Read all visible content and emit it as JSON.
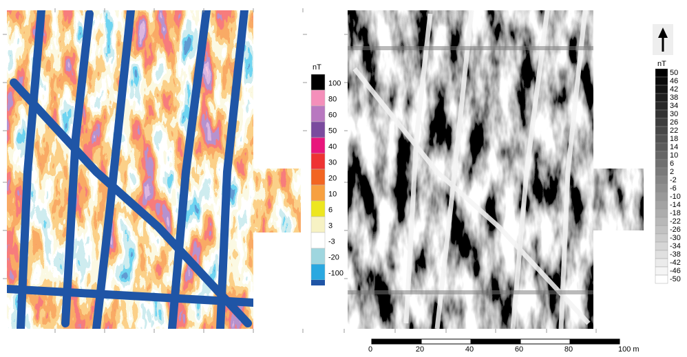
{
  "legend_color": {
    "title": "nT",
    "items": [
      {
        "label": "100",
        "color": "#000000"
      },
      {
        "label": "80",
        "color": "#f48fba"
      },
      {
        "label": "60",
        "color": "#b878c0"
      },
      {
        "label": "50",
        "color": "#7a4a9e"
      },
      {
        "label": "40",
        "color": "#e8157c"
      },
      {
        "label": "30",
        "color": "#ee3333"
      },
      {
        "label": "20",
        "color": "#f26522"
      },
      {
        "label": "10",
        "color": "#f7a040"
      },
      {
        "label": "6",
        "color": "#ede620"
      },
      {
        "label": "3",
        "color": "#f7f2c4"
      },
      {
        "label": "-3",
        "color": "#ffffff"
      },
      {
        "label": "-20",
        "color": "#9fd6df"
      },
      {
        "label": "-100",
        "color": "#2aa8e0"
      }
    ],
    "below_color": "#1f55a6"
  },
  "legend_gray": {
    "title": "nT",
    "labels": [
      "50",
      "46",
      "42",
      "38",
      "34",
      "30",
      "26",
      "22",
      "18",
      "14",
      "10",
      "6",
      "2",
      "-2",
      "-6",
      "-10",
      "-14",
      "-18",
      "-22",
      "-26",
      "-30",
      "-34",
      "-38",
      "-42",
      "-46",
      "-50"
    ]
  },
  "scale_bar": {
    "labels": [
      "0",
      "20",
      "40",
      "60",
      "80",
      "100 m"
    ]
  }
}
